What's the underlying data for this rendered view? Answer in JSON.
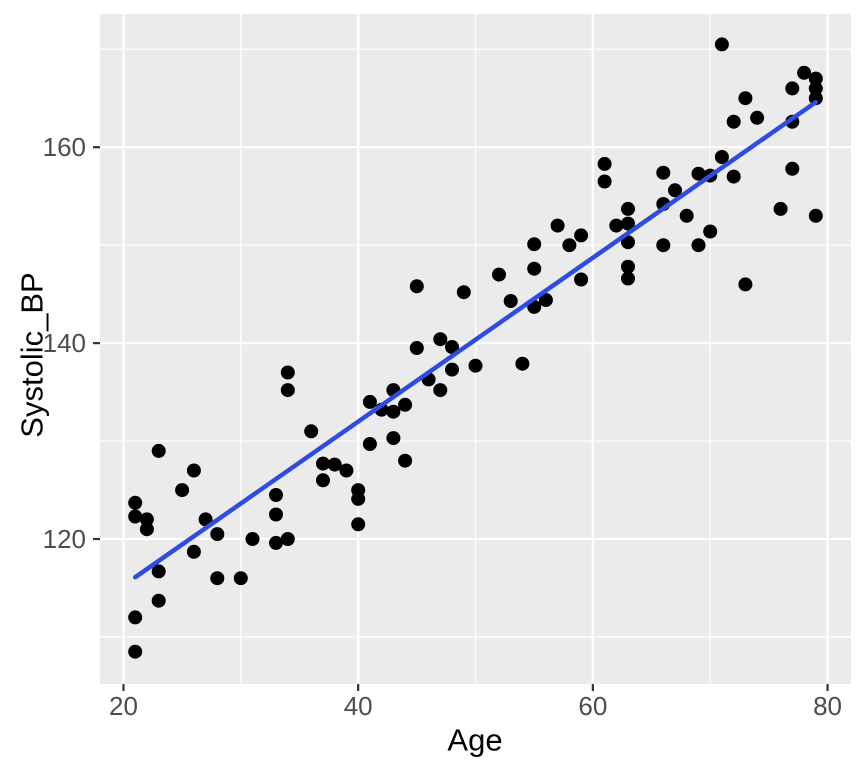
{
  "chart_data": {
    "type": "scatter",
    "title": "",
    "xlabel": "Age",
    "ylabel": "Systolic_BP",
    "xlim": [
      18,
      82
    ],
    "ylim": [
      105.2,
      173.6
    ],
    "x_major_ticks": [
      20,
      40,
      60,
      80
    ],
    "x_minor_ticks": [
      30,
      50,
      70
    ],
    "y_major_ticks": [
      120,
      140,
      160
    ],
    "y_minor_ticks": [
      110,
      130,
      150,
      170
    ],
    "grid": "on",
    "legend": "none",
    "colors": {
      "panel_bg": "#ebebeb",
      "grid": "#ffffff",
      "point": "#000000",
      "trend_line": "#2e4ce4",
      "tick_text": "#4d4d4d",
      "axis_title": "#000000",
      "tick_mark": "#333333"
    },
    "trend_line": {
      "x1": 21,
      "y1": 116.1,
      "x2": 79,
      "y2": 164.6
    },
    "points": [
      [
        21,
        123.7
      ],
      [
        21,
        122.3
      ],
      [
        21,
        112.0
      ],
      [
        21,
        108.5
      ],
      [
        22,
        122.0
      ],
      [
        22,
        121.0
      ],
      [
        23,
        129.0
      ],
      [
        23,
        116.7
      ],
      [
        23,
        113.7
      ],
      [
        25,
        125.0
      ],
      [
        26,
        127.0
      ],
      [
        26,
        118.7
      ],
      [
        27,
        122.0
      ],
      [
        28,
        120.5
      ],
      [
        28,
        116.0
      ],
      [
        30,
        116.0
      ],
      [
        31,
        120.0
      ],
      [
        33,
        124.5
      ],
      [
        33,
        122.5
      ],
      [
        33,
        119.6
      ],
      [
        34,
        137.0
      ],
      [
        34,
        135.2
      ],
      [
        34,
        120.0
      ],
      [
        36,
        131.0
      ],
      [
        37,
        127.7
      ],
      [
        37,
        126.0
      ],
      [
        38,
        127.6
      ],
      [
        39,
        127.0
      ],
      [
        40,
        125.0
      ],
      [
        40,
        124.1
      ],
      [
        40,
        121.5
      ],
      [
        41,
        134.0
      ],
      [
        41,
        129.7
      ],
      [
        42,
        133.2
      ],
      [
        43,
        135.2
      ],
      [
        43,
        133.0
      ],
      [
        43,
        130.3
      ],
      [
        44,
        133.7
      ],
      [
        44,
        128.0
      ],
      [
        45,
        145.8
      ],
      [
        45,
        139.5
      ],
      [
        46,
        136.3
      ],
      [
        47,
        140.4
      ],
      [
        47,
        135.2
      ],
      [
        48,
        139.6
      ],
      [
        48,
        137.3
      ],
      [
        49,
        145.2
      ],
      [
        50,
        137.7
      ],
      [
        52,
        147.0
      ],
      [
        53,
        144.3
      ],
      [
        54,
        137.9
      ],
      [
        55,
        150.1
      ],
      [
        55,
        147.6
      ],
      [
        55,
        143.7
      ],
      [
        56,
        144.4
      ],
      [
        57,
        152.0
      ],
      [
        58,
        150.0
      ],
      [
        59,
        151.0
      ],
      [
        59,
        146.5
      ],
      [
        61,
        158.3
      ],
      [
        61,
        156.5
      ],
      [
        62,
        152.0
      ],
      [
        63,
        153.7
      ],
      [
        63,
        152.2
      ],
      [
        63,
        150.3
      ],
      [
        63,
        147.8
      ],
      [
        63,
        146.6
      ],
      [
        66,
        157.4
      ],
      [
        66,
        154.2
      ],
      [
        66,
        150.0
      ],
      [
        67,
        155.6
      ],
      [
        68,
        153.0
      ],
      [
        69,
        157.3
      ],
      [
        69,
        150.0
      ],
      [
        70,
        157.1
      ],
      [
        70,
        151.4
      ],
      [
        71,
        170.5
      ],
      [
        71,
        159.0
      ],
      [
        72,
        162.6
      ],
      [
        72,
        157.0
      ],
      [
        73,
        165.0
      ],
      [
        73,
        146.0
      ],
      [
        74,
        163.0
      ],
      [
        76,
        153.7
      ],
      [
        77,
        166.0
      ],
      [
        77,
        162.6
      ],
      [
        77,
        157.8
      ],
      [
        78,
        167.6
      ],
      [
        79,
        167.0
      ],
      [
        79,
        166.0
      ],
      [
        79,
        165.0
      ],
      [
        79,
        153.0
      ]
    ]
  }
}
